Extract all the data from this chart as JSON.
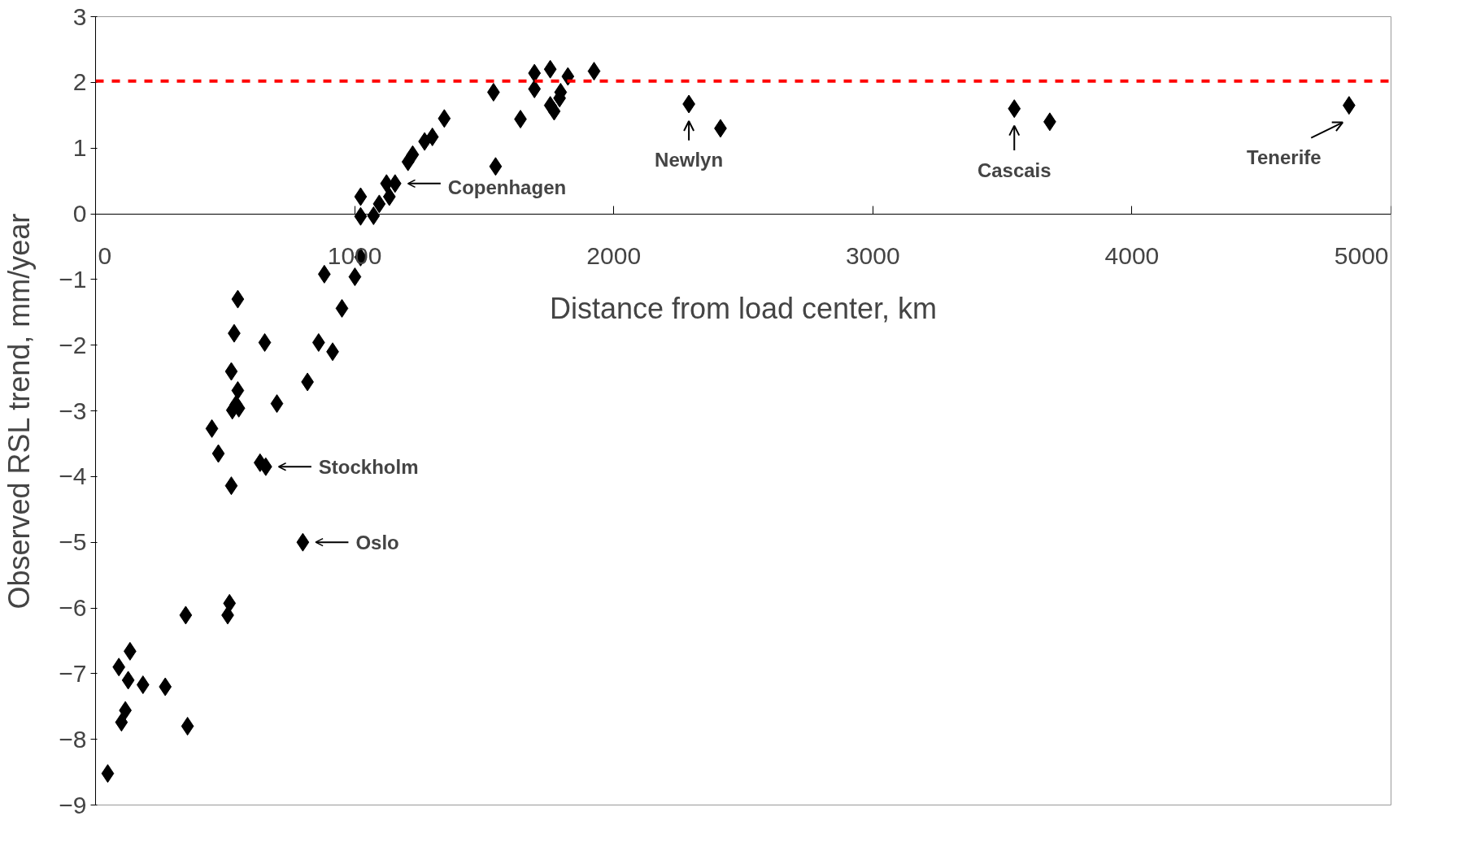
{
  "chart_data": {
    "type": "scatter",
    "xlabel": "Distance from load center, km",
    "ylabel": "Observed RSL trend, mm/year",
    "xlim": [
      0,
      5000
    ],
    "ylim": [
      -9,
      3
    ],
    "xticks": [
      0,
      1000,
      2000,
      3000,
      4000,
      5000
    ],
    "yticks": [
      -9,
      -8,
      -7,
      -6,
      -5,
      -4,
      -3,
      -2,
      -1,
      0,
      1,
      2,
      3
    ],
    "grid": false,
    "marker": "diamond",
    "series": [
      {
        "color": "#000000",
        "x": [
          1023,
          1023,
          1073,
          1095,
          1123,
          1134,
          1156,
          1206,
          1224,
          1270,
          1300,
          1346,
          1536,
          1544,
          1640,
          1694,
          1694,
          1755,
          1755,
          1770,
          1795,
          1791,
          1823,
          1924,
          2290,
          2412,
          3546,
          3683,
          4838,
          1023,
          1001,
          883,
          951,
          549,
          535,
          653,
          861,
          915,
          524,
          549,
          542,
          528,
          553,
          700,
          818,
          449,
          474,
          635,
          657,
          524,
          800,
          517,
          510,
          348,
          133,
          90,
          126,
          183,
          269,
          115,
          100,
          355,
          47
        ],
        "values": [
          0.26,
          -0.04,
          -0.03,
          0.15,
          0.46,
          0.26,
          0.46,
          0.79,
          0.9,
          1.1,
          1.17,
          1.45,
          1.85,
          0.72,
          1.44,
          2.14,
          1.9,
          2.2,
          1.65,
          1.56,
          1.85,
          1.76,
          2.09,
          2.17,
          1.67,
          1.3,
          1.6,
          1.4,
          1.65,
          -0.66,
          -0.96,
          -0.92,
          -1.44,
          -1.3,
          -1.82,
          -1.96,
          -1.96,
          -2.1,
          -2.4,
          -2.69,
          -2.9,
          -2.99,
          -2.96,
          -2.89,
          -2.56,
          -3.27,
          -3.65,
          -3.79,
          -3.85,
          -4.14,
          -5.0,
          -5.93,
          -6.11,
          -6.11,
          -6.66,
          -6.9,
          -7.1,
          -7.17,
          -7.2,
          -7.56,
          -7.74,
          -7.8,
          -8.52
        ]
      }
    ],
    "ref_lines": [
      {
        "axis": "y",
        "value": 2.02,
        "color": "#ff0000",
        "line_style": "dashed"
      }
    ],
    "annotations": [
      {
        "text": "Copenhagen",
        "x": 1156,
        "y": 0.46
      },
      {
        "text": "Stockholm",
        "x": 657,
        "y": -3.85
      },
      {
        "text": "Oslo",
        "x": 800,
        "y": -5.0
      },
      {
        "text": "Newlyn",
        "x": 2290,
        "y": 1.67
      },
      {
        "text": "Cascais",
        "x": 3546,
        "y": 1.6
      },
      {
        "text": "Tenerife",
        "x": 4838,
        "y": 1.65
      }
    ]
  }
}
